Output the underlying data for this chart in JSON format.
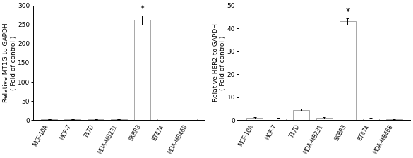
{
  "categories": [
    "MCF-10A",
    "MCF-7",
    "T47D",
    "MDA-MB231",
    "SKBR3",
    "BT474",
    "MDA-MB468"
  ],
  "mt1g_values": [
    2.0,
    2.0,
    2.0,
    2.0,
    262.0,
    4.0,
    4.0
  ],
  "mt1g_errors": [
    0.5,
    0.5,
    0.5,
    0.5,
    12.0,
    0.8,
    0.8
  ],
  "her2_values": [
    1.0,
    0.8,
    4.5,
    1.0,
    43.0,
    0.8,
    0.5
  ],
  "her2_errors": [
    0.3,
    0.2,
    0.4,
    0.2,
    1.5,
    0.2,
    0.15
  ],
  "mt1g_ylabel": "Relative MT1G to GAPDH\n( Fold of control )",
  "her2_ylabel": "Relative HER2 to GAPDH\n( Fold of control )",
  "mt1g_ylim": [
    0,
    300
  ],
  "her2_ylim": [
    0,
    50
  ],
  "mt1g_yticks": [
    0,
    50,
    100,
    150,
    200,
    250,
    300
  ],
  "her2_yticks": [
    0,
    10,
    20,
    30,
    40,
    50
  ],
  "bar_color": "#ffffff",
  "bar_edgecolor": "#999999",
  "star_index": 4,
  "bar_width": 0.7,
  "background_color": "#ffffff",
  "tick_labelsize": 5.5,
  "ylabel_fontsize": 6.5,
  "star_fontsize": 9,
  "ytick_labelsize": 6.5
}
